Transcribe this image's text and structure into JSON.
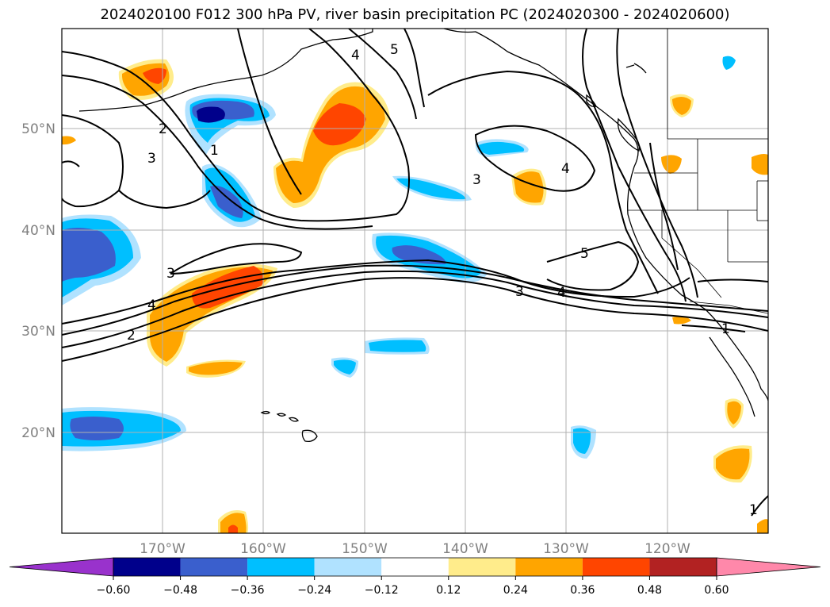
{
  "title": "2024020100 F012 300 hPa PV, river basin precipitation PC (2024020300 - 2024020600)",
  "lat_labels": [
    "50°N",
    "40°N",
    "30°N",
    "20°N"
  ],
  "lon_labels": [
    "170°W",
    "160°W",
    "150°W",
    "140°W",
    "130°W",
    "120°W"
  ],
  "pv_contour_labels": [
    "5",
    "4",
    "2",
    "3",
    "1",
    "3",
    "4",
    "2",
    "3",
    "4",
    "5",
    "3",
    "4",
    "1",
    "1"
  ],
  "colorbar": {
    "ticks": [
      "−0.60",
      "−0.48",
      "−0.36",
      "−0.24",
      "−0.12",
      "0.12",
      "0.24",
      "0.36",
      "0.48",
      "0.60"
    ],
    "colors": [
      "#9932cc",
      "#00008b",
      "#3a5fcd",
      "#00bfff",
      "#b0e2ff",
      "#ffffff",
      "#ffec8b",
      "#ffa500",
      "#ff4500",
      "#b22222",
      "#ff88aa"
    ]
  },
  "colors": {
    "dark_blue": "#00008b",
    "mid_blue": "#3a5fcd",
    "sky_blue": "#00bfff",
    "light_blue": "#b0e2ff",
    "light_yellow": "#ffec8b",
    "orange": "#ffa500",
    "red_orange": "#ff4500"
  }
}
